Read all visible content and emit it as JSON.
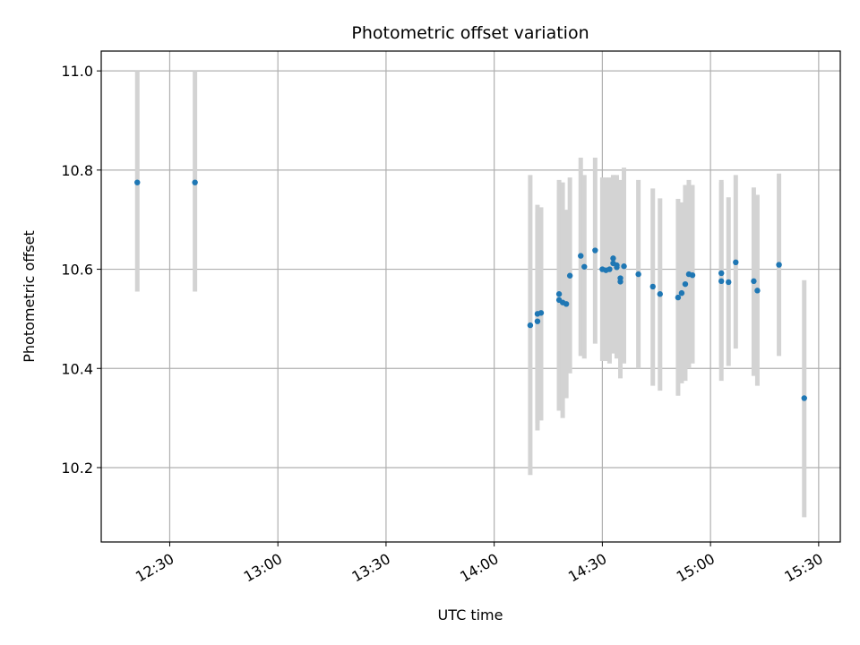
{
  "chart_data": {
    "type": "scatter",
    "title": "Photometric offset variation",
    "xlabel": "UTC time",
    "ylabel": "Photometric offset",
    "xlim": [
      "12:11",
      "15:36"
    ],
    "ylim": [
      10.05,
      11.04
    ],
    "xticks": [
      "12:30",
      "13:00",
      "13:30",
      "14:00",
      "14:30",
      "15:00",
      "15:30"
    ],
    "yticks": [
      10.2,
      10.4,
      10.6,
      10.8,
      11.0
    ],
    "ytick_labels": [
      "10.2",
      "10.4",
      "10.6",
      "10.8",
      "11.0"
    ],
    "grid": true,
    "point_color": "#1f77b4",
    "errorbar_color": "#d3d3d3",
    "points": [
      {
        "x": "12:21",
        "y": 10.775,
        "ylo": 10.555,
        "yhi": 11.0
      },
      {
        "x": "12:37",
        "y": 10.775,
        "ylo": 10.555,
        "yhi": 11.0
      },
      {
        "x": "14:10",
        "y": 10.487,
        "ylo": 10.185,
        "yhi": 10.79
      },
      {
        "x": "14:12",
        "y": 10.495,
        "ylo": 10.275,
        "yhi": 10.715
      },
      {
        "x": "14:12",
        "y": 10.51,
        "ylo": 10.29,
        "yhi": 10.73
      },
      {
        "x": "14:13",
        "y": 10.512,
        "ylo": 10.295,
        "yhi": 10.725
      },
      {
        "x": "14:18",
        "y": 10.55,
        "ylo": 10.315,
        "yhi": 10.78
      },
      {
        "x": "14:18",
        "y": 10.538,
        "ylo": 10.315,
        "yhi": 10.76
      },
      {
        "x": "14:19",
        "y": 10.533,
        "ylo": 10.3,
        "yhi": 10.775
      },
      {
        "x": "14:20",
        "y": 10.53,
        "ylo": 10.34,
        "yhi": 10.72
      },
      {
        "x": "14:21",
        "y": 10.587,
        "ylo": 10.39,
        "yhi": 10.785
      },
      {
        "x": "14:24",
        "y": 10.627,
        "ylo": 10.425,
        "yhi": 10.825
      },
      {
        "x": "14:25",
        "y": 10.605,
        "ylo": 10.42,
        "yhi": 10.79
      },
      {
        "x": "14:28",
        "y": 10.638,
        "ylo": 10.45,
        "yhi": 10.825
      },
      {
        "x": "14:30",
        "y": 10.6,
        "ylo": 10.415,
        "yhi": 10.785
      },
      {
        "x": "14:31",
        "y": 10.598,
        "ylo": 10.415,
        "yhi": 10.785
      },
      {
        "x": "14:32",
        "y": 10.6,
        "ylo": 10.41,
        "yhi": 10.785
      },
      {
        "x": "14:33",
        "y": 10.612,
        "ylo": 10.43,
        "yhi": 10.79
      },
      {
        "x": "14:33",
        "y": 10.622,
        "ylo": 10.45,
        "yhi": 10.79
      },
      {
        "x": "14:34",
        "y": 10.608,
        "ylo": 10.425,
        "yhi": 10.79
      },
      {
        "x": "14:34",
        "y": 10.604,
        "ylo": 10.42,
        "yhi": 10.785
      },
      {
        "x": "14:35",
        "y": 10.575,
        "ylo": 10.39,
        "yhi": 10.76
      },
      {
        "x": "14:35",
        "y": 10.582,
        "ylo": 10.38,
        "yhi": 10.78
      },
      {
        "x": "14:36",
        "y": 10.606,
        "ylo": 10.41,
        "yhi": 10.805
      },
      {
        "x": "14:40",
        "y": 10.59,
        "ylo": 10.4,
        "yhi": 10.78
      },
      {
        "x": "14:44",
        "y": 10.565,
        "ylo": 10.365,
        "yhi": 10.763
      },
      {
        "x": "14:46",
        "y": 10.55,
        "ylo": 10.355,
        "yhi": 10.743
      },
      {
        "x": "14:51",
        "y": 10.543,
        "ylo": 10.345,
        "yhi": 10.742
      },
      {
        "x": "14:52",
        "y": 10.552,
        "ylo": 10.37,
        "yhi": 10.735
      },
      {
        "x": "14:53",
        "y": 10.57,
        "ylo": 10.375,
        "yhi": 10.77
      },
      {
        "x": "14:54",
        "y": 10.59,
        "ylo": 10.4,
        "yhi": 10.78
      },
      {
        "x": "14:55",
        "y": 10.588,
        "ylo": 10.41,
        "yhi": 10.77
      },
      {
        "x": "15:03",
        "y": 10.592,
        "ylo": 10.405,
        "yhi": 10.78
      },
      {
        "x": "15:03",
        "y": 10.576,
        "ylo": 10.375,
        "yhi": 10.775
      },
      {
        "x": "15:05",
        "y": 10.574,
        "ylo": 10.405,
        "yhi": 10.745
      },
      {
        "x": "15:07",
        "y": 10.614,
        "ylo": 10.44,
        "yhi": 10.79
      },
      {
        "x": "15:12",
        "y": 10.576,
        "ylo": 10.385,
        "yhi": 10.765
      },
      {
        "x": "15:13",
        "y": 10.557,
        "ylo": 10.365,
        "yhi": 10.75
      },
      {
        "x": "15:19",
        "y": 10.609,
        "ylo": 10.425,
        "yhi": 10.793
      },
      {
        "x": "15:26",
        "y": 10.34,
        "ylo": 10.1,
        "yhi": 10.578
      }
    ]
  }
}
